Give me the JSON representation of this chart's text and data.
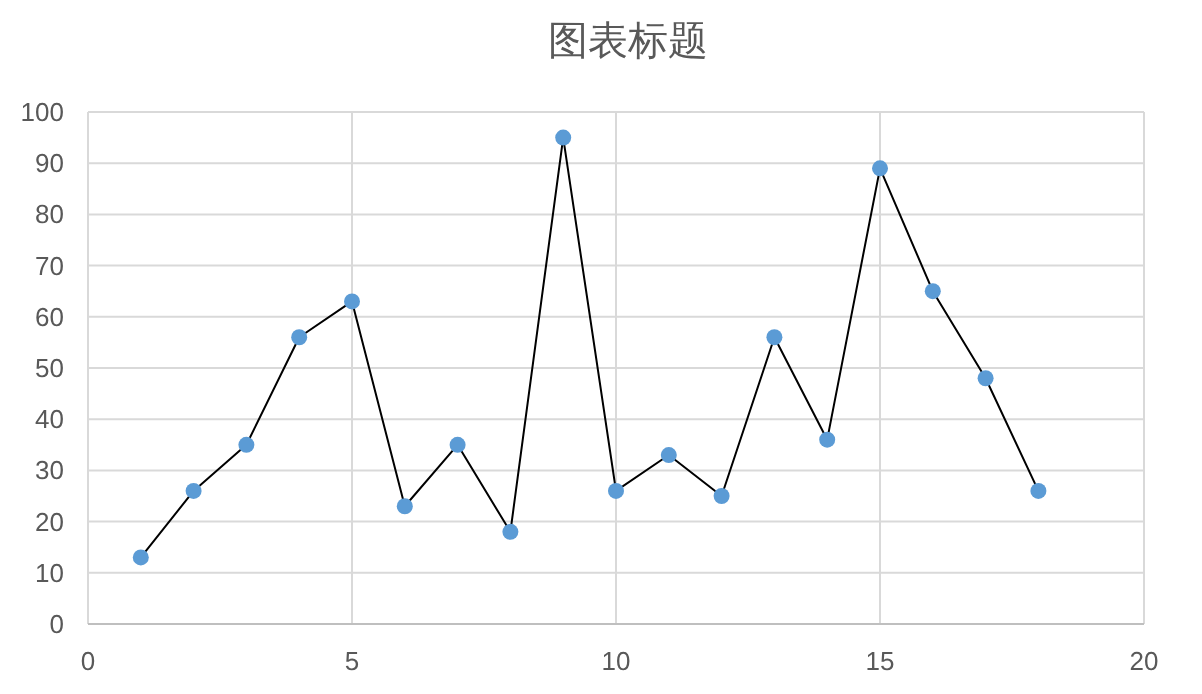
{
  "chart_data": {
    "type": "line",
    "title": "图表标题",
    "x": [
      1,
      2,
      3,
      4,
      5,
      6,
      7,
      8,
      9,
      10,
      11,
      12,
      13,
      14,
      15,
      16,
      17,
      18
    ],
    "series": [
      {
        "color": "#5b9bd5",
        "values": [
          13,
          26,
          35,
          56,
          63,
          23,
          35,
          18,
          95,
          26,
          33,
          25,
          56,
          36,
          89,
          65,
          48,
          26
        ]
      }
    ],
    "xlim": [
      0,
      20
    ],
    "ylim": [
      0,
      100
    ],
    "xticks": [
      0,
      5,
      10,
      15,
      20
    ],
    "yticks": [
      0,
      10,
      20,
      30,
      40,
      50,
      60,
      70,
      80,
      90,
      100
    ],
    "grid": true,
    "marker": "circle",
    "line_style": "solid"
  }
}
